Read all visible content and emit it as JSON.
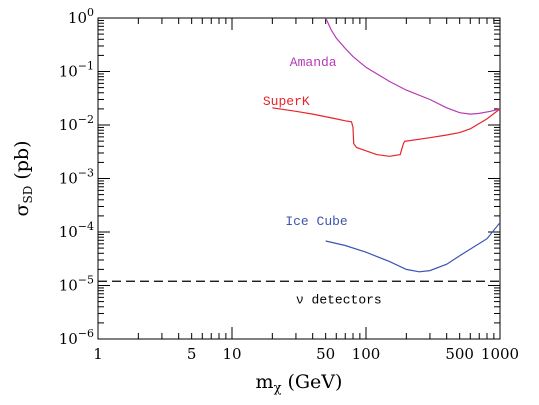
{
  "chart_data": {
    "type": "line",
    "title": "",
    "xlabel": {
      "main": "m",
      "sub": "χ",
      "unit": "(GeV)"
    },
    "ylabel": {
      "main": "σ",
      "sub": "SD",
      "unit": "(pb)"
    },
    "x_scale": "log",
    "y_scale": "log",
    "xlim": [
      1,
      1000
    ],
    "ylim": [
      1e-06,
      1
    ],
    "x_ticks": [
      {
        "value": 1,
        "label": "1"
      },
      {
        "value": 5,
        "label": "5"
      },
      {
        "value": 10,
        "label": "10"
      },
      {
        "value": 50,
        "label": "50"
      },
      {
        "value": 100,
        "label": "100"
      },
      {
        "value": 500,
        "label": "500"
      },
      {
        "value": 1000,
        "label": "1000"
      }
    ],
    "y_ticks": [
      {
        "value": 1,
        "base": "10",
        "exp": "0"
      },
      {
        "value": 0.1,
        "base": "10",
        "exp": "−1"
      },
      {
        "value": 0.01,
        "base": "10",
        "exp": "−2"
      },
      {
        "value": 0.001,
        "base": "10",
        "exp": "−3"
      },
      {
        "value": 0.0001,
        "base": "10",
        "exp": "−4"
      },
      {
        "value": 1e-05,
        "base": "10",
        "exp": "−5"
      },
      {
        "value": 1e-06,
        "base": "10",
        "exp": "−6"
      }
    ],
    "grid": false,
    "series": [
      {
        "name": "Amanda",
        "color": "#b53ab5",
        "label_at": [
          27,
          0.15
        ],
        "x": [
          50,
          55,
          60,
          70,
          80,
          100,
          150,
          200,
          300,
          400,
          500,
          600,
          700,
          850,
          1000
        ],
        "y": [
          1.0,
          0.6,
          0.42,
          0.27,
          0.19,
          0.12,
          0.065,
          0.045,
          0.03,
          0.021,
          0.017,
          0.016,
          0.0165,
          0.018,
          0.02
        ]
      },
      {
        "name": "SuperK",
        "color": "#e8242a",
        "label_at": [
          17,
          0.028
        ],
        "x": [
          20,
          30,
          40,
          60,
          70,
          78,
          80,
          81,
          85,
          100,
          120,
          150,
          180,
          190,
          195,
          200,
          300,
          400,
          500,
          600,
          800,
          1000
        ],
        "y": [
          0.021,
          0.018,
          0.016,
          0.013,
          0.012,
          0.0115,
          0.009,
          0.0045,
          0.0038,
          0.0033,
          0.0028,
          0.0026,
          0.0028,
          0.0045,
          0.005,
          0.005,
          0.0058,
          0.0065,
          0.0072,
          0.0085,
          0.013,
          0.02
        ]
      },
      {
        "name": "Ice Cube",
        "color": "#3f53b0",
        "label_at": [
          25,
          0.00016
        ],
        "x": [
          50,
          70,
          100,
          150,
          200,
          250,
          300,
          400,
          500,
          600,
          800,
          1000
        ],
        "y": [
          6.8e-05,
          5.6e-05,
          4.2e-05,
          2.8e-05,
          2e-05,
          1.8e-05,
          1.9e-05,
          2.5e-05,
          3.6e-05,
          4.8e-05,
          7.5e-05,
          0.00015
        ]
      }
    ],
    "reference_lines": [
      {
        "name": "ν detectors",
        "y": 1.2e-05,
        "style": "dashed",
        "color": "#000000",
        "label_at": [
          30,
          5.5e-06
        ]
      }
    ]
  }
}
